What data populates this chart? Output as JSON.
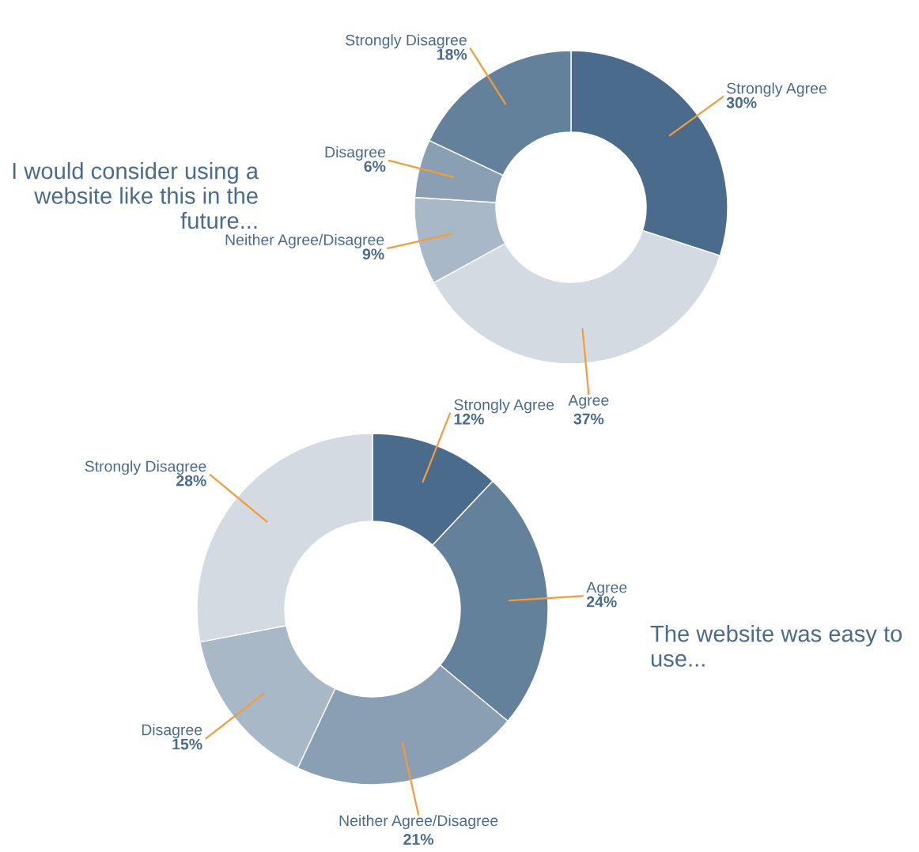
{
  "chart_data": [
    {
      "type": "donut",
      "title": "I would consider using a website like this in the future...",
      "categories": [
        "Strongly Agree",
        "Agree",
        "Neither Agree/Disagree",
        "Disagree",
        "Strongly Disagree"
      ],
      "values": [
        30,
        37,
        9,
        6,
        18
      ],
      "value_labels": [
        "30%",
        "37%",
        "9%",
        "6%",
        "18%"
      ],
      "colors": [
        "#4a6b8c",
        "#d3dae2",
        "#a9b8c6",
        "#8a9fb3",
        "#64819b"
      ]
    },
    {
      "type": "donut",
      "title": "The website was easy to use...",
      "categories": [
        "Strongly Agree",
        "Agree",
        "Neither Agree/Disagree",
        "Disagree",
        "Strongly Disagree"
      ],
      "values": [
        12,
        24,
        21,
        15,
        28
      ],
      "value_labels": [
        "12%",
        "24%",
        "21%",
        "15%",
        "28%"
      ],
      "colors": [
        "#4a6b8c",
        "#64819b",
        "#8a9fb3",
        "#a9b8c6",
        "#d3dae2"
      ]
    }
  ]
}
